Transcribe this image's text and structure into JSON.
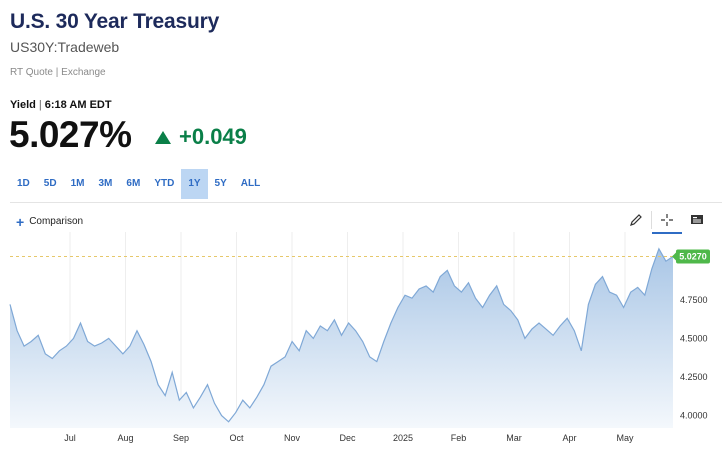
{
  "header": {
    "title": "U.S. 30 Year Treasury",
    "symbol": "US30Y:Tradeweb",
    "quote_type": "RT Quote | Exchange"
  },
  "quote": {
    "label": "Yield",
    "time": "6:18 AM EDT",
    "price": "5.027%",
    "change": "+0.049",
    "direction": "up",
    "up_color": "#0a7f48"
  },
  "ranges": [
    "1D",
    "5D",
    "1M",
    "3M",
    "6M",
    "YTD",
    "1Y",
    "5Y",
    "ALL"
  ],
  "active_range": "1Y",
  "toolbar": {
    "comparison_label": "Comparison",
    "tools": [
      "pencil-icon",
      "crosshair-icon",
      "news-icon"
    ],
    "active_tool": "crosshair-icon"
  },
  "chart_data": {
    "type": "area",
    "series": [
      {
        "values": [
          4.72,
          4.55,
          4.45,
          4.48,
          4.52,
          4.4,
          4.37,
          4.42,
          4.45,
          4.5,
          4.6,
          4.48,
          4.45,
          4.47,
          4.5,
          4.45,
          4.4,
          4.45,
          4.55,
          4.46,
          4.35,
          4.2,
          4.13,
          4.28,
          4.1,
          4.15,
          4.05,
          4.12,
          4.2,
          4.08,
          4.0,
          3.96,
          4.02,
          4.1,
          4.05,
          4.12,
          4.2,
          4.32,
          4.35,
          4.38,
          4.48,
          4.42,
          4.55,
          4.5,
          4.58,
          4.55,
          4.62,
          4.52,
          4.6,
          4.55,
          4.48,
          4.38,
          4.35,
          4.48,
          4.6,
          4.7,
          4.78,
          4.76,
          4.82,
          4.84,
          4.8,
          4.9,
          4.94,
          4.84,
          4.8,
          4.86,
          4.76,
          4.7,
          4.78,
          4.84,
          4.72,
          4.68,
          4.62,
          4.5,
          4.56,
          4.6,
          4.56,
          4.52,
          4.58,
          4.63,
          4.55,
          4.42,
          4.72,
          4.85,
          4.9,
          4.8,
          4.78,
          4.7,
          4.8,
          4.83,
          4.78,
          4.95,
          5.08,
          5.0,
          5.03
        ]
      }
    ],
    "x_tick_labels": [
      "Jul",
      "Aug",
      "Sep",
      "Oct",
      "Nov",
      "Dec",
      "2025",
      "Feb",
      "Mar",
      "Apr",
      "May"
    ],
    "y_tick_labels": [
      "4.0000",
      "4.2500",
      "4.5000",
      "4.7500"
    ],
    "ylim": [
      3.92,
      5.15
    ],
    "last_value_label": "5.0270",
    "line_color": "#7fa8d6",
    "fill_top_color": "#a9c6e6",
    "fill_bottom_color": "#f4f8fc",
    "reference_line_color": "#e6c86b",
    "last_badge_color": "#4fb84a",
    "grid": true
  }
}
